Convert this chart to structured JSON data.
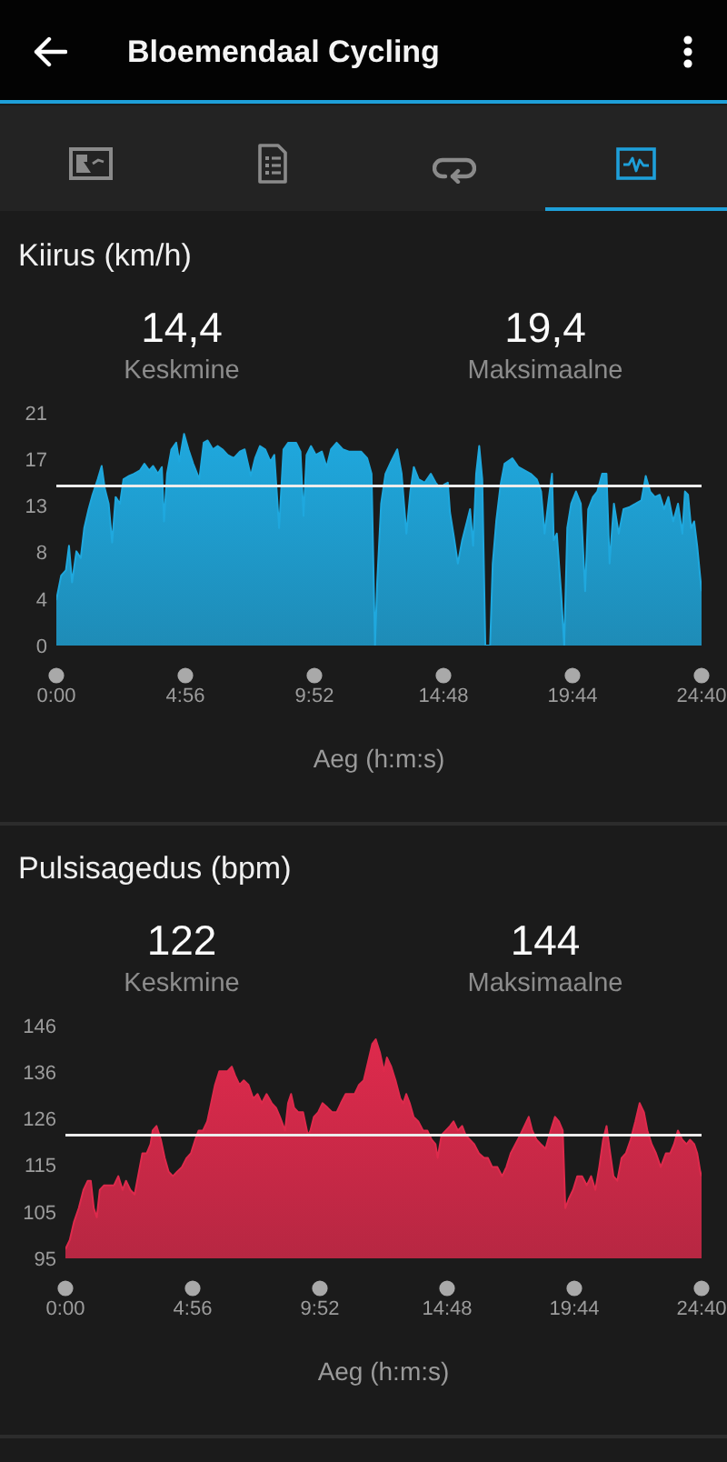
{
  "chart_data": [
    {
      "type": "other",
      "title": "Bloemendaal Cycling"
    },
    {
      "type": "area",
      "title": "Kiirus (km/h)",
      "annotations": [
        "14,4",
        "Keskmine",
        "19,4",
        "Maksimaalne"
      ],
      "xlabel": "Aeg (h:m:s)",
      "x": [
        0,
        11,
        22,
        29,
        36,
        46,
        56,
        64,
        74,
        83,
        95,
        104,
        111,
        120,
        128,
        136,
        146,
        154,
        167,
        178,
        192,
        202,
        213,
        222,
        233,
        242,
        247,
        254,
        264,
        275,
        282,
        293,
        303,
        314,
        328,
        338,
        347,
        359,
        370,
        381,
        393,
        407,
        421,
        432,
        446,
        456,
        467,
        479,
        491,
        500,
        511,
        521,
        532,
        550,
        560,
        567,
        574,
        584,
        595,
        609,
        620,
        630,
        643,
        657,
        671,
        685,
        699,
        713,
        723,
        731,
        736,
        745,
        755,
        768,
        782,
        792,
        803,
        812,
        820,
        831,
        845,
        859,
        870,
        880,
        889,
        898,
        903,
        912,
        921,
        931,
        942,
        949,
        956,
        963,
        970,
        977,
        984,
        995,
        1001,
        1009,
        1019,
        1028,
        1046,
        1060,
        1074,
        1088,
        1102,
        1112,
        1120,
        1130,
        1137,
        1141,
        1148,
        1158,
        1165,
        1172,
        1181,
        1192,
        1203,
        1213,
        1220,
        1231,
        1241,
        1252,
        1262,
        1269,
        1279,
        1290,
        1301,
        1315,
        1329,
        1342,
        1352,
        1362,
        1373,
        1384,
        1394,
        1404,
        1415,
        1426,
        1436,
        1442,
        1449,
        1456,
        1463,
        1470,
        1480
      ],
      "values": [
        4.1,
        6.3,
        6.8,
        9.0,
        5.7,
        8.5,
        7.9,
        10.6,
        12.3,
        13.6,
        15.0,
        16.2,
        14.2,
        12.8,
        9.3,
        13.4,
        12.8,
        15.0,
        15.3,
        15.5,
        15.8,
        16.4,
        15.8,
        16.2,
        15.5,
        16.1,
        11.2,
        15.5,
        17.7,
        18.3,
        16.6,
        19.1,
        17.7,
        16.4,
        15.0,
        18.3,
        18.5,
        17.7,
        18.0,
        17.7,
        17.2,
        16.9,
        17.5,
        17.7,
        15.3,
        16.9,
        18.0,
        17.7,
        16.6,
        17.2,
        10.6,
        17.7,
        18.3,
        18.3,
        17.5,
        11.7,
        17.2,
        18.0,
        17.2,
        17.5,
        16.1,
        17.7,
        18.3,
        17.7,
        17.5,
        17.5,
        17.5,
        16.9,
        15.5,
        0,
        5.7,
        12.8,
        15.5,
        16.6,
        17.7,
        15.5,
        10.1,
        13.9,
        16.1,
        15.0,
        14.7,
        15.5,
        14.7,
        14.2,
        14.5,
        14.7,
        12.0,
        9.8,
        7.4,
        9.5,
        11.2,
        12.3,
        9.0,
        15.5,
        18.0,
        15.0,
        0,
        0,
        7.4,
        11.2,
        14.5,
        16.4,
        16.9,
        16.1,
        15.8,
        15.5,
        15.0,
        13.9,
        10.1,
        13.4,
        15.5,
        9.5,
        10.1,
        4.6,
        0,
        10.6,
        12.8,
        13.9,
        12.8,
        4.9,
        12.3,
        13.4,
        13.9,
        15.5,
        15.5,
        7.4,
        12.8,
        10.1,
        12.3,
        12.5,
        12.8,
        13.1,
        15.3,
        13.9,
        13.4,
        13.6,
        12.3,
        13.4,
        11.2,
        12.8,
        10.1,
        13.9,
        13.6,
        10.6,
        11.2,
        9.0,
        4.9
      ],
      "color": "#1fa8de",
      "xlim": [
        0,
        1480
      ],
      "xticks": [
        {
          "value": 0,
          "label": "0:00"
        },
        {
          "value": 296,
          "label": "4:56"
        },
        {
          "value": 592,
          "label": "9:52"
        },
        {
          "value": 888,
          "label": "14:48"
        },
        {
          "value": 1184,
          "label": "19:44"
        },
        {
          "value": 1480,
          "label": "24:40"
        }
      ],
      "ylim": [
        0,
        21
      ],
      "yticks": [
        0,
        {
          "value": 4.2,
          "label": "4"
        },
        {
          "value": 8.4,
          "label": "8"
        },
        {
          "value": 12.6,
          "label": "13"
        },
        {
          "value": 16.8,
          "label": "17"
        },
        21
      ],
      "ref_lines": [
        {
          "axis": "y",
          "value": 14.4,
          "color": "#ececec"
        }
      ]
    },
    {
      "type": "area",
      "title": "Pulsisagedus (bpm)",
      "annotations": [
        "122",
        "Keskmine",
        "144",
        "Maksimaalne"
      ],
      "xlabel": "Aeg (h:m:s)",
      "x": [
        0,
        10,
        20,
        31,
        42,
        52,
        59,
        66,
        73,
        80,
        90,
        102,
        113,
        123,
        133,
        141,
        151,
        161,
        169,
        179,
        189,
        198,
        203,
        212,
        222,
        231,
        240,
        250,
        260,
        271,
        282,
        292,
        302,
        310,
        320,
        330,
        339,
        348,
        358,
        367,
        377,
        387,
        395,
        405,
        415,
        426,
        437,
        447,
        457,
        468,
        480,
        490,
        499,
        511,
        518,
        525,
        532,
        542,
        553,
        564,
        570,
        578,
        588,
        598,
        610,
        621,
        631,
        641,
        652,
        663,
        673,
        683,
        694,
        704,
        714,
        722,
        732,
        741,
        748,
        758,
        768,
        779,
        786,
        793,
        801,
        810,
        821,
        832,
        842,
        852,
        861,
        866,
        875,
        885,
        895,
        903,
        913,
        923,
        931,
        941,
        951,
        962,
        974,
        983,
        993,
        1005,
        1016,
        1026,
        1036,
        1047,
        1058,
        1068,
        1078,
        1086,
        1096,
        1106,
        1117,
        1129,
        1139,
        1148,
        1157,
        1163,
        1171,
        1181,
        1191,
        1202,
        1213,
        1223,
        1233,
        1242,
        1251,
        1259,
        1266,
        1275,
        1284,
        1294,
        1304,
        1315,
        1326,
        1336,
        1346,
        1354,
        1364,
        1374,
        1385,
        1397,
        1407,
        1416,
        1425,
        1435,
        1445,
        1453,
        1463,
        1470,
        1477,
        1480
      ],
      "values": [
        97,
        99,
        103,
        106,
        110,
        112,
        112,
        106,
        104,
        110,
        111,
        111,
        111,
        113,
        110,
        112,
        110,
        109,
        113,
        118,
        118,
        120,
        123,
        124,
        121,
        117,
        114,
        113,
        114,
        115,
        117,
        118,
        121,
        123,
        123,
        125,
        129,
        133,
        136,
        136,
        136,
        137,
        135,
        133,
        134,
        133,
        130,
        131,
        129,
        131,
        129,
        128,
        126,
        123,
        129,
        131,
        128,
        127,
        127,
        122,
        123,
        126,
        127,
        129,
        128,
        127,
        127,
        129,
        131,
        131,
        131,
        133,
        134,
        138,
        142,
        143,
        140,
        136,
        139,
        137,
        134,
        130,
        129,
        131,
        129,
        126,
        125,
        123,
        123,
        121,
        120,
        117,
        122,
        123,
        124,
        125,
        123,
        124,
        122,
        121,
        120,
        118,
        117,
        117,
        115,
        115,
        113,
        115,
        118,
        120,
        122,
        124,
        126,
        123,
        121,
        120,
        119,
        123,
        126,
        125,
        123,
        106,
        108,
        110,
        113,
        113,
        111,
        113,
        110,
        115,
        121,
        124,
        119,
        113,
        112,
        117,
        118,
        121,
        125,
        129,
        127,
        123,
        120,
        118,
        115,
        118,
        118,
        120,
        123,
        121,
        120,
        121,
        120,
        118,
        114,
        113
      ],
      "color": "#de2a4c",
      "xlim": [
        0,
        1480
      ],
      "xticks": [
        {
          "value": 0,
          "label": "0:00"
        },
        {
          "value": 296,
          "label": "4:56"
        },
        {
          "value": 592,
          "label": "9:52"
        },
        {
          "value": 888,
          "label": "14:48"
        },
        {
          "value": 1184,
          "label": "19:44"
        },
        {
          "value": 1480,
          "label": "24:40"
        }
      ],
      "ylim": [
        95,
        146
      ],
      "yticks": [
        95,
        {
          "value": 105.2,
          "label": "105"
        },
        {
          "value": 115.4,
          "label": "115"
        },
        {
          "value": 125.6,
          "label": "126"
        },
        {
          "value": 135.8,
          "label": "136"
        },
        146
      ],
      "ref_lines": [
        {
          "axis": "y",
          "value": 122,
          "color": "#ececec"
        }
      ]
    }
  ]
}
